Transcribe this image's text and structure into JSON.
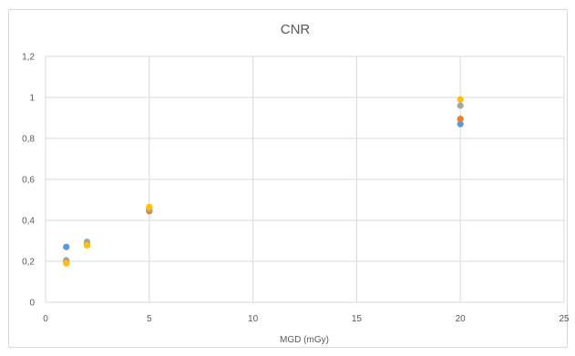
{
  "chart_data": {
    "type": "scatter",
    "title": "CNR",
    "xlabel": "MGD (mGy)",
    "ylabel": "",
    "xlim": [
      0,
      25
    ],
    "ylim": [
      0,
      1.2
    ],
    "xticks": [
      "0",
      "5",
      "10",
      "15",
      "20",
      "25"
    ],
    "yticks": [
      "0",
      "0,2",
      "0,4",
      "0,6",
      "0,8",
      "1",
      "1,2"
    ],
    "grid": true,
    "legend": "none",
    "series": [
      {
        "color": "#5B9BD5",
        "points": [
          [
            1,
            0.27
          ],
          [
            2,
            0.29
          ],
          [
            5,
            0.45
          ],
          [
            20,
            0.87
          ]
        ]
      },
      {
        "color": "#ED7D31",
        "points": [
          [
            1,
            0.2
          ],
          [
            2,
            0.28
          ],
          [
            5,
            0.445
          ],
          [
            20,
            0.895
          ]
        ]
      },
      {
        "color": "#A5A5A5",
        "points": [
          [
            1,
            0.205
          ],
          [
            2,
            0.295
          ],
          [
            5,
            0.455
          ],
          [
            20,
            0.96
          ]
        ]
      },
      {
        "color": "#FFC000",
        "points": [
          [
            1,
            0.19
          ],
          [
            2,
            0.278
          ],
          [
            5,
            0.465
          ],
          [
            20,
            0.99
          ]
        ]
      }
    ]
  }
}
